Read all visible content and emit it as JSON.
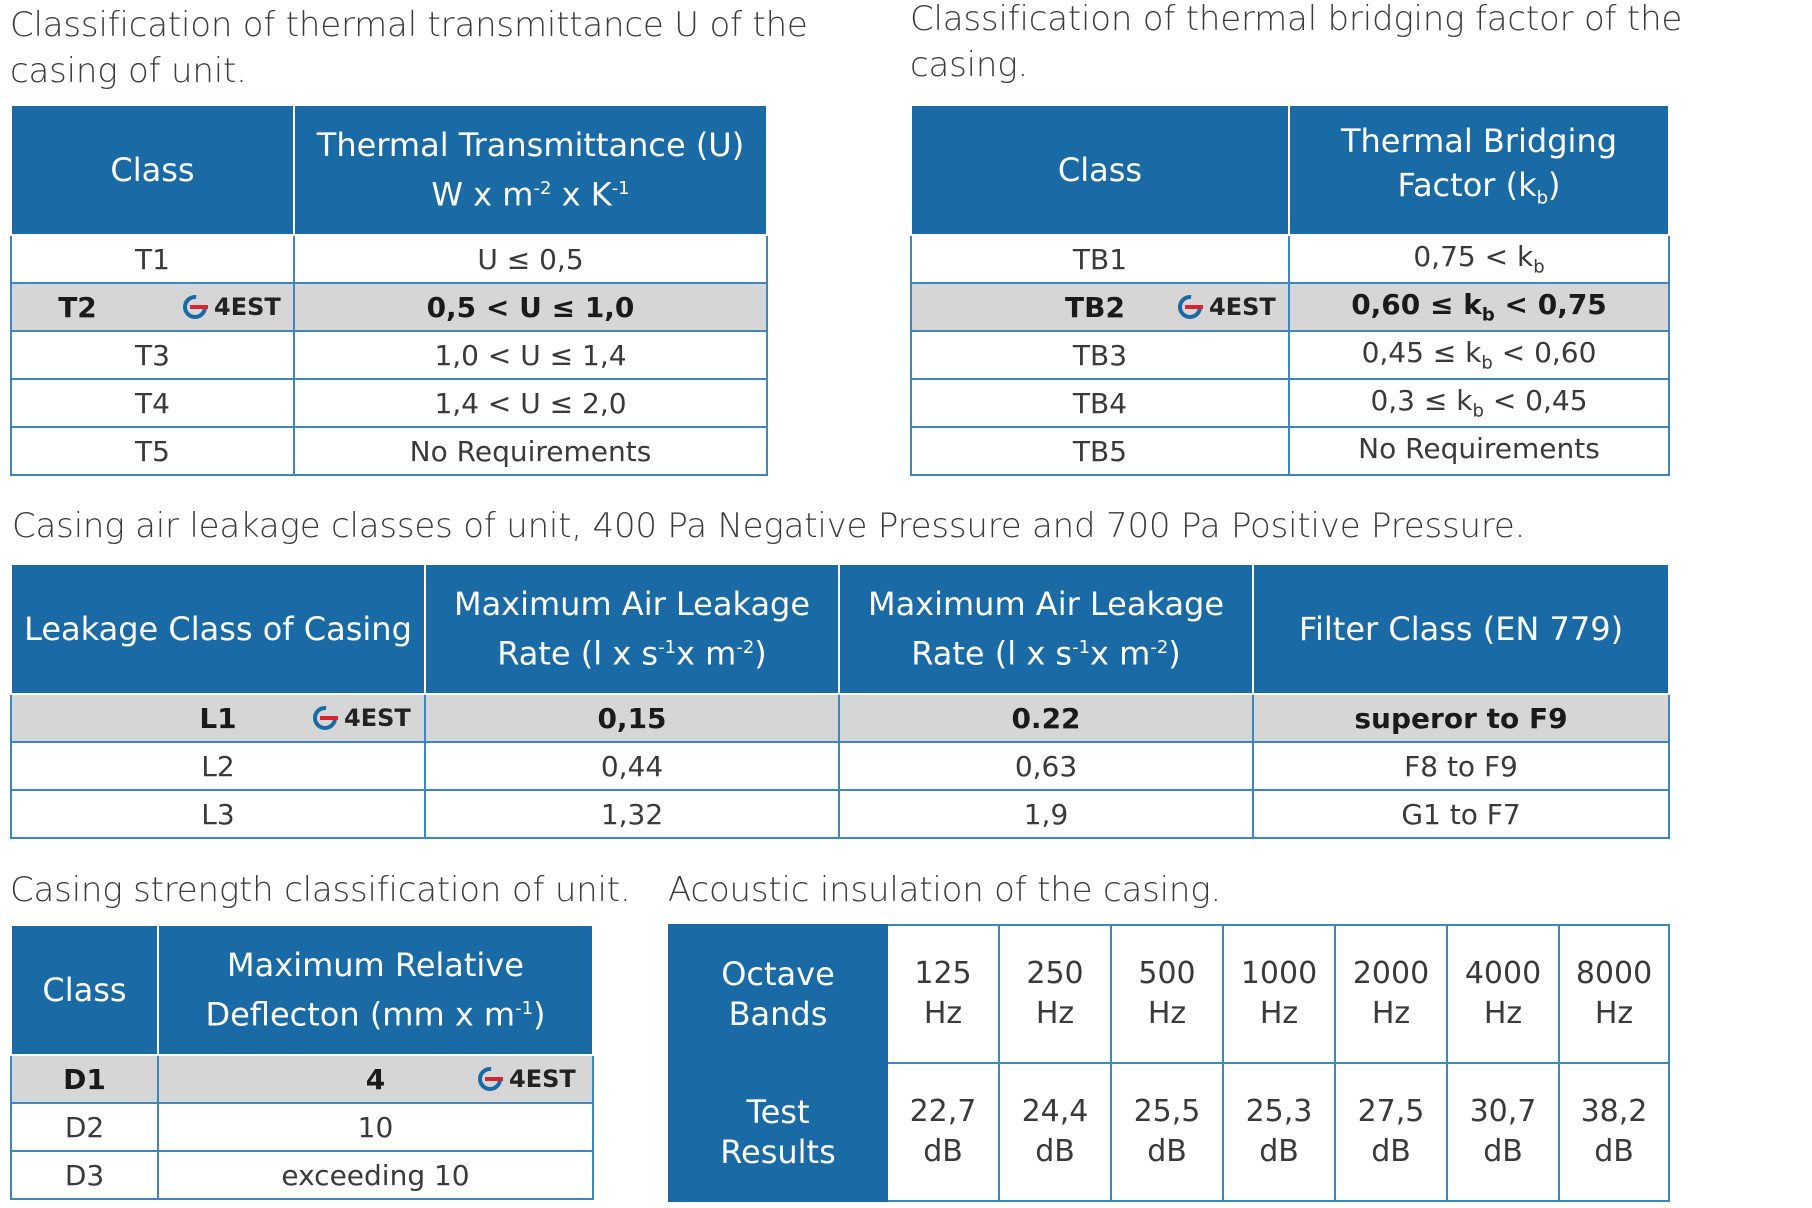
{
  "u_table": {
    "caption_line1": "Classification of thermal transmittance U of the",
    "caption_line2": "casing of unit.",
    "header_class": "Class",
    "header_value_line1": "Thermal Transmittance (U)",
    "header_value_unit_w": "W x m",
    "header_value_exp1": "-2",
    "header_value_unit_k": " x K",
    "header_value_exp2": "-1",
    "rows": [
      {
        "class": "T1",
        "value": "U ≤ 0,5"
      },
      {
        "class": "T2",
        "value": "0,5 < U ≤ 1,0",
        "badge": "4EST"
      },
      {
        "class": "T3",
        "value": "1,0 < U ≤ 1,4"
      },
      {
        "class": "T4",
        "value": "1,4 < U ≤ 2,0"
      },
      {
        "class": "T5",
        "value": "No Requirements"
      }
    ]
  },
  "kb_table": {
    "caption_line1": "Classification of thermal bridging factor of the",
    "caption_line2": "casing.",
    "header_class": "Class",
    "header_value_line1": "Thermal Bridging",
    "header_value_line2_pre": "Factor (k",
    "header_value_line2_sub": "b",
    "header_value_line2_post": ")",
    "rows": [
      {
        "class": "TB1",
        "pre": "0,75 < k",
        "sub": "b",
        "post": ""
      },
      {
        "class": "TB2",
        "pre": "0,60 ≤ k",
        "sub": "b",
        "post": " < 0,75",
        "badge": "4EST"
      },
      {
        "class": "TB3",
        "pre": "0,45 ≤ k",
        "sub": "b",
        "post": " < 0,60"
      },
      {
        "class": "TB4",
        "pre": "0,3 ≤ k",
        "sub": "b",
        "post": " < 0,45"
      },
      {
        "class": "TB5",
        "pre": "No Requirements",
        "sub": "",
        "post": ""
      }
    ]
  },
  "leak_table": {
    "caption": "Casing air leakage classes of unit, 400 Pa Negative Pressure and 700 Pa Positive Pressure.",
    "header_class": "Leakage Class of Casing",
    "header_neg_line1": "Maximum Air Leakage",
    "header_pos_line1": "Maximum Air Leakage",
    "header_rate_pre": "Rate (l x s",
    "header_rate_exp1": "-1",
    "header_rate_mid": "x m",
    "header_rate_exp2": "-2",
    "header_rate_post": ")",
    "header_filter": "Filter Class (EN 779)",
    "rows": [
      {
        "class": "L1",
        "neg": "0,15",
        "pos": "0.22",
        "filter": "superor to F9",
        "badge": "4EST"
      },
      {
        "class": "L2",
        "neg": "0,44",
        "pos": "0,63",
        "filter": "F8 to F9"
      },
      {
        "class": "L3",
        "neg": "1,32",
        "pos": "1,9",
        "filter": "G1 to F7"
      }
    ]
  },
  "strength_table": {
    "caption": "Casing strength classification of unit.",
    "header_class": "Class",
    "header_value_line1": "Maximum Relative",
    "header_value_line2_pre": "Deflecton (mm x m",
    "header_value_line2_exp": "-1",
    "header_value_line2_post": ")",
    "rows": [
      {
        "class": "D1",
        "value": "4",
        "badge": "4EST"
      },
      {
        "class": "D2",
        "value": "10"
      },
      {
        "class": "D3",
        "value": "exceeding 10"
      }
    ]
  },
  "acoustic_table": {
    "caption": "Acoustic insulation of the casing.",
    "header_bands_line1": "Octave",
    "header_bands_line2": "Bands",
    "header_results_line1": "Test",
    "header_results_line2": "Results",
    "bands": [
      {
        "freq": "125",
        "unit": "Hz",
        "result": "22,7",
        "result_unit": "dB"
      },
      {
        "freq": "250",
        "unit": "Hz",
        "result": "24,4",
        "result_unit": "dB"
      },
      {
        "freq": "500",
        "unit": "Hz",
        "result": "25,5",
        "result_unit": "dB"
      },
      {
        "freq": "1000",
        "unit": "Hz",
        "result": "25,3",
        "result_unit": "dB"
      },
      {
        "freq": "2000",
        "unit": "Hz",
        "result": "27,5",
        "result_unit": "dB"
      },
      {
        "freq": "4000",
        "unit": "Hz",
        "result": "30,7",
        "result_unit": "dB"
      },
      {
        "freq": "8000",
        "unit": "Hz",
        "result": "38,2",
        "result_unit": "dB"
      }
    ]
  },
  "logo": {
    "icon": "company-logo-icon",
    "color_primary": "#1a6aa6",
    "color_accent": "#d9232d"
  }
}
